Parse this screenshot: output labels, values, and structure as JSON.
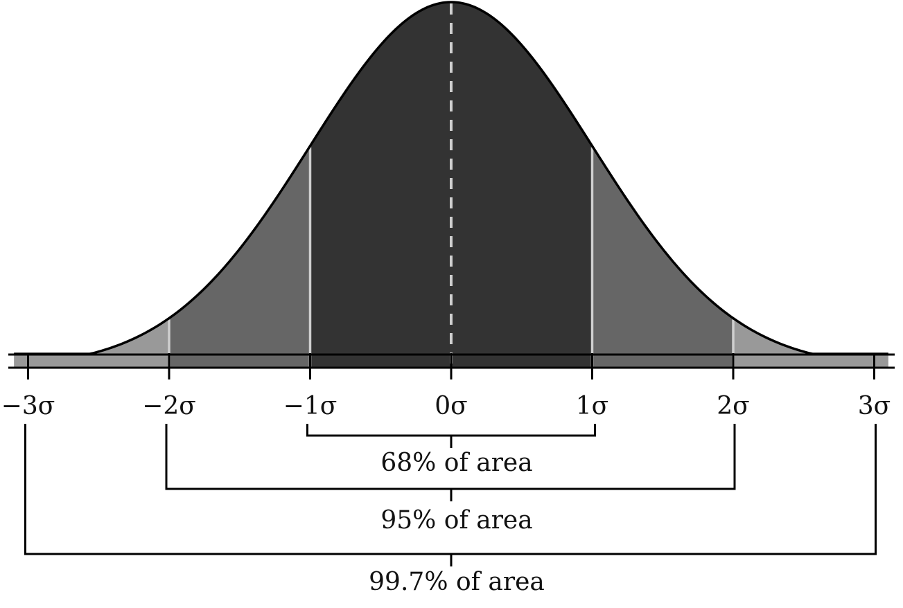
{
  "chart_data": {
    "type": "area",
    "distribution": "normal",
    "x_tick_labels": [
      "−3σ",
      "−2σ",
      "−1σ",
      "0σ",
      "1σ",
      "2σ",
      "3σ"
    ],
    "x_ticks": [
      -3,
      -2,
      -1,
      0,
      1,
      2,
      3
    ],
    "xlim": [
      -3.1,
      3.1
    ],
    "mean_line": "dashed",
    "regions": [
      {
        "from": -1,
        "to": 1,
        "color": "#333333"
      },
      {
        "from": -2,
        "to": -1,
        "color": "#666666"
      },
      {
        "from": 1,
        "to": 2,
        "color": "#666666"
      },
      {
        "from": -3.1,
        "to": -2,
        "color": "#999999"
      },
      {
        "from": 2,
        "to": 3.1,
        "color": "#999999"
      }
    ],
    "intervals": [
      {
        "from": -1,
        "to": 1,
        "label": "68% of area"
      },
      {
        "from": -2,
        "to": 2,
        "label": "95% of area"
      },
      {
        "from": -3,
        "to": 3,
        "label": "99.7% of area"
      }
    ]
  },
  "colors": {
    "inner": "#333333",
    "middle": "#666666",
    "outer": "#999999",
    "boundary_lines": "#cfcfcf",
    "outline": "#000000"
  }
}
